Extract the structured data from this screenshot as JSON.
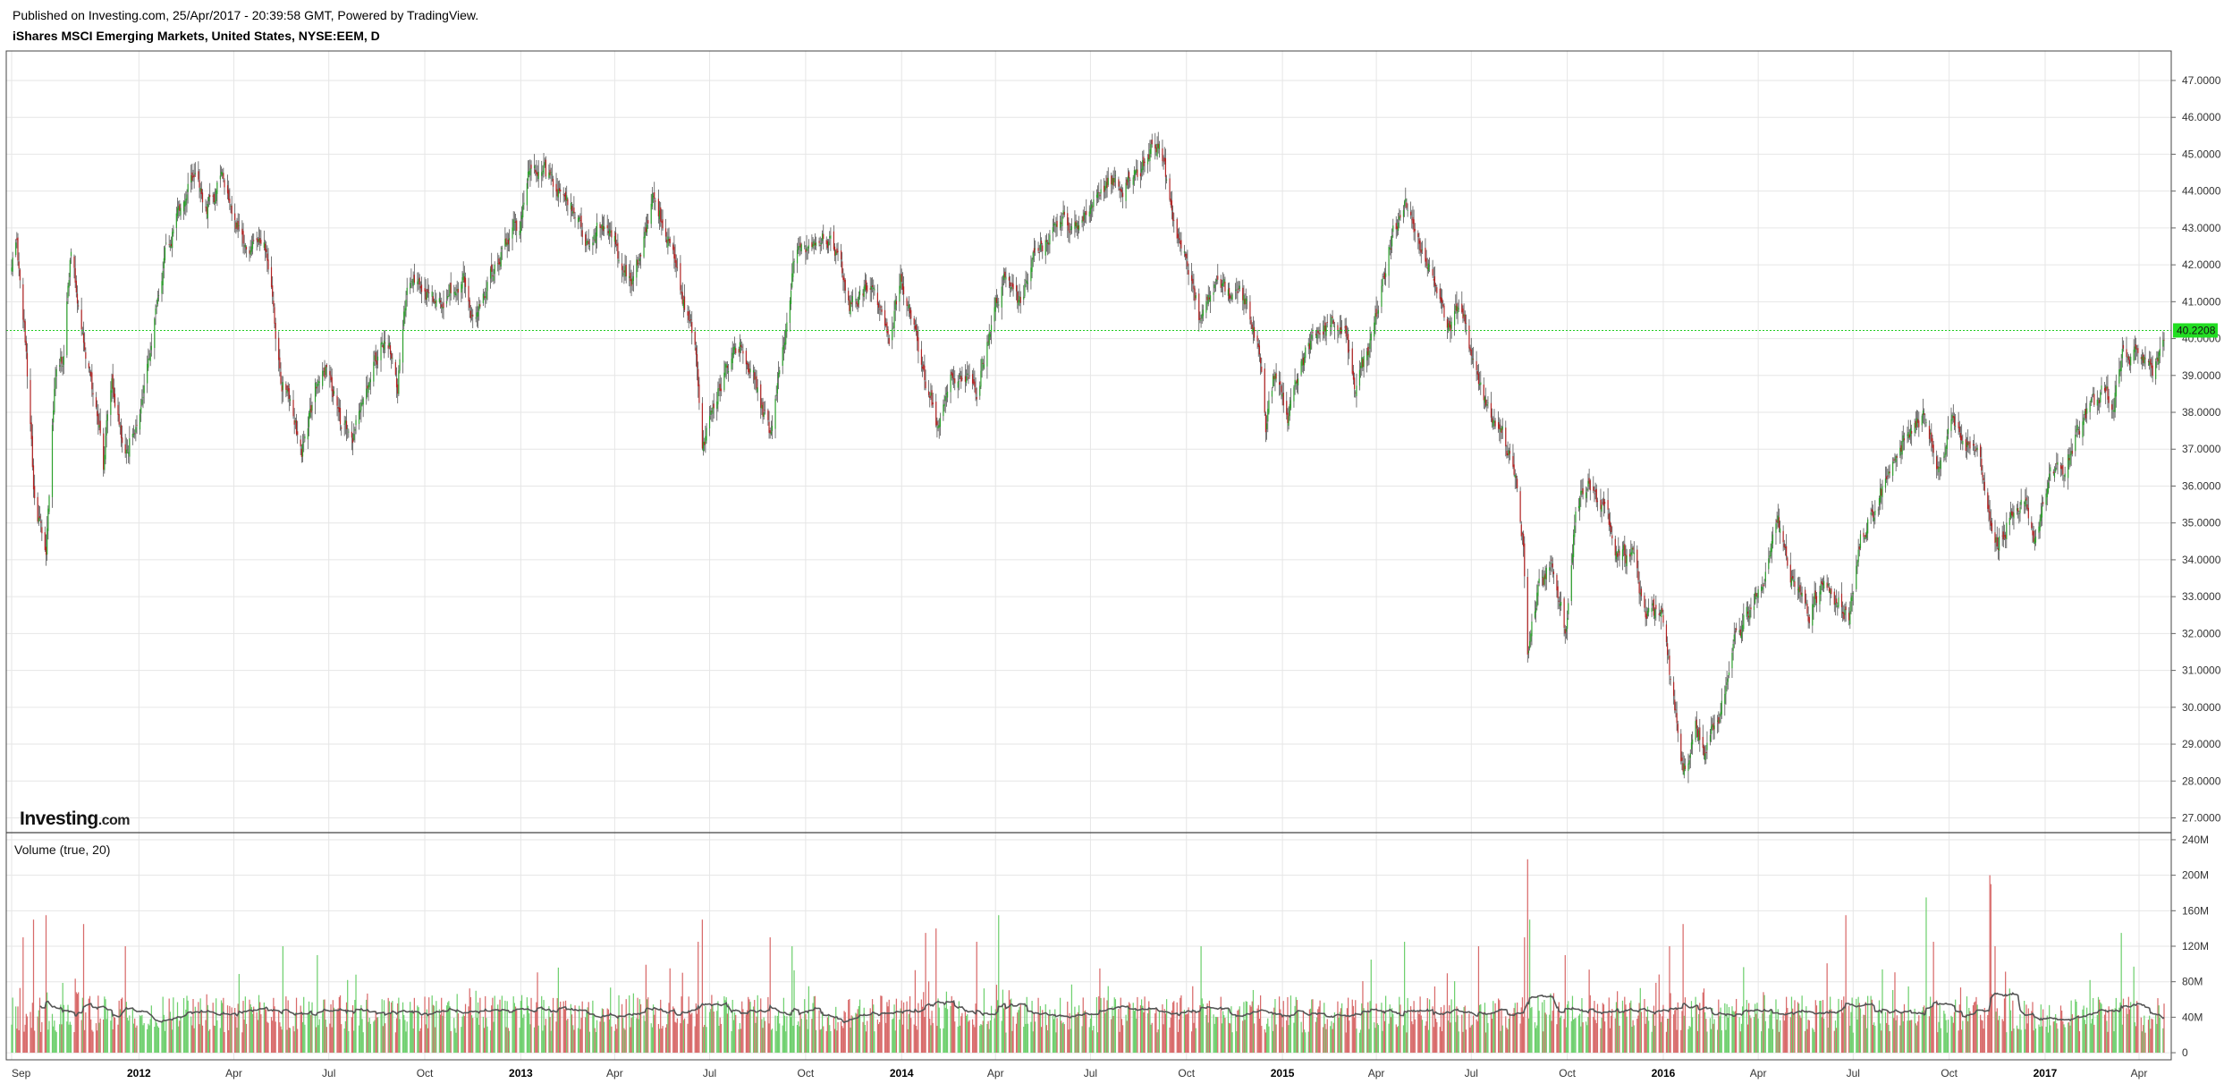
{
  "header": {
    "published": "Published on Investing.com, 25/Apr/2017 - 20:39:58 GMT, Powered by TradingView.",
    "title": "iShares MSCI Emerging Markets, United States, NYSE:EEM, D"
  },
  "logo": {
    "main": "Investing",
    "suffix": ".com"
  },
  "colors": {
    "up": "#2ca02c",
    "down": "#b22222",
    "wick": "#555555",
    "vol_up": "#6fd06f",
    "vol_down": "#d86a6a",
    "vol_ma": "#555555",
    "last_price_line": "#22cc22",
    "last_price_badge": "#22dd22",
    "grid": "#e6e6e6"
  },
  "chart_data": [
    {
      "type": "candlestick",
      "title": "iShares MSCI Emerging Markets, United States, NYSE:EEM, D",
      "ylim": [
        26.6,
        47.8
      ],
      "yticks": [
        "27.0000",
        "28.0000",
        "29.0000",
        "30.0000",
        "31.0000",
        "32.0000",
        "33.0000",
        "34.0000",
        "35.0000",
        "36.0000",
        "37.0000",
        "38.0000",
        "39.0000",
        "40.0000",
        "41.0000",
        "42.0000",
        "43.0000",
        "44.0000",
        "45.0000",
        "46.0000",
        "47.0000"
      ],
      "last_price": 40.2208,
      "last_price_label": "40.2208",
      "x_start": "2011-09-01",
      "x_end": "2017-04-25",
      "xticks": [
        {
          "date": "2011-09-01",
          "label": "Sep",
          "bold": false
        },
        {
          "date": "2012-01-01",
          "label": "2012",
          "bold": true
        },
        {
          "date": "2012-04-01",
          "label": "Apr",
          "bold": false
        },
        {
          "date": "2012-07-01",
          "label": "Jul",
          "bold": false
        },
        {
          "date": "2012-10-01",
          "label": "Oct",
          "bold": false
        },
        {
          "date": "2013-01-01",
          "label": "2013",
          "bold": true
        },
        {
          "date": "2013-04-01",
          "label": "Apr",
          "bold": false
        },
        {
          "date": "2013-07-01",
          "label": "Jul",
          "bold": false
        },
        {
          "date": "2013-10-01",
          "label": "Oct",
          "bold": false
        },
        {
          "date": "2014-01-01",
          "label": "2014",
          "bold": true
        },
        {
          "date": "2014-04-01",
          "label": "Apr",
          "bold": false
        },
        {
          "date": "2014-07-01",
          "label": "Jul",
          "bold": false
        },
        {
          "date": "2014-10-01",
          "label": "Oct",
          "bold": false
        },
        {
          "date": "2015-01-01",
          "label": "2015",
          "bold": true
        },
        {
          "date": "2015-04-01",
          "label": "Apr",
          "bold": false
        },
        {
          "date": "2015-07-01",
          "label": "Jul",
          "bold": false
        },
        {
          "date": "2015-10-01",
          "label": "Oct",
          "bold": false
        },
        {
          "date": "2016-01-01",
          "label": "2016",
          "bold": true
        },
        {
          "date": "2016-04-01",
          "label": "Apr",
          "bold": false
        },
        {
          "date": "2016-07-01",
          "label": "Jul",
          "bold": false
        },
        {
          "date": "2016-10-01",
          "label": "Oct",
          "bold": false
        },
        {
          "date": "2017-01-01",
          "label": "2017",
          "bold": true
        },
        {
          "date": "2017-04-01",
          "label": "Apr",
          "bold": false
        }
      ],
      "price_path": [
        [
          "2011-09-01",
          42.0
        ],
        [
          "2011-09-06",
          42.6
        ],
        [
          "2011-09-14",
          40.0
        ],
        [
          "2011-09-22",
          36.0
        ],
        [
          "2011-10-04",
          34.0
        ],
        [
          "2011-10-12",
          38.6
        ],
        [
          "2011-10-20",
          39.5
        ],
        [
          "2011-10-28",
          42.5
        ],
        [
          "2011-11-08",
          40.2
        ],
        [
          "2011-11-22",
          38.0
        ],
        [
          "2011-11-28",
          36.5
        ],
        [
          "2011-12-06",
          39.0
        ],
        [
          "2011-12-19",
          37.0
        ],
        [
          "2011-12-30",
          37.8
        ],
        [
          "2012-01-12",
          39.5
        ],
        [
          "2012-01-27",
          42.5
        ],
        [
          "2012-02-10",
          43.5
        ],
        [
          "2012-02-24",
          44.5
        ],
        [
          "2012-03-06",
          43.5
        ],
        [
          "2012-03-20",
          44.3
        ],
        [
          "2012-04-02",
          43.0
        ],
        [
          "2012-04-16",
          42.6
        ],
        [
          "2012-04-30",
          43.0
        ],
        [
          "2012-05-08",
          41.0
        ],
        [
          "2012-05-16",
          39.0
        ],
        [
          "2012-05-31",
          37.5
        ],
        [
          "2012-06-05",
          37.0
        ],
        [
          "2012-06-18",
          38.6
        ],
        [
          "2012-06-29",
          39.2
        ],
        [
          "2012-07-12",
          37.8
        ],
        [
          "2012-07-24",
          37.3
        ],
        [
          "2012-08-06",
          39.0
        ],
        [
          "2012-08-20",
          39.8
        ],
        [
          "2012-08-31",
          39.5
        ],
        [
          "2012-09-05",
          38.8
        ],
        [
          "2012-09-14",
          41.5
        ],
        [
          "2012-09-28",
          41.3
        ],
        [
          "2012-10-12",
          41.0
        ],
        [
          "2012-10-26",
          41.3
        ],
        [
          "2012-11-08",
          41.5
        ],
        [
          "2012-11-16",
          40.5
        ],
        [
          "2012-11-30",
          41.5
        ],
        [
          "2012-12-14",
          42.5
        ],
        [
          "2012-12-31",
          43.2
        ],
        [
          "2013-01-08",
          44.7
        ],
        [
          "2013-01-22",
          44.5
        ],
        [
          "2013-02-05",
          44.0
        ],
        [
          "2013-02-20",
          43.5
        ],
        [
          "2013-03-04",
          42.7
        ],
        [
          "2013-03-15",
          43.0
        ],
        [
          "2013-04-01",
          42.5
        ],
        [
          "2013-04-16",
          41.5
        ],
        [
          "2013-04-30",
          42.8
        ],
        [
          "2013-05-08",
          43.8
        ],
        [
          "2013-05-22",
          42.8
        ],
        [
          "2013-06-05",
          41.0
        ],
        [
          "2013-06-17",
          40.0
        ],
        [
          "2013-06-24",
          37.0
        ],
        [
          "2013-07-03",
          38.0
        ],
        [
          "2013-07-17",
          39.3
        ],
        [
          "2013-08-01",
          39.8
        ],
        [
          "2013-08-16",
          38.7
        ],
        [
          "2013-08-28",
          37.3
        ],
        [
          "2013-09-10",
          40.0
        ],
        [
          "2013-09-20",
          42.3
        ],
        [
          "2013-10-04",
          42.5
        ],
        [
          "2013-10-18",
          42.8
        ],
        [
          "2013-10-30",
          42.4
        ],
        [
          "2013-11-12",
          41.0
        ],
        [
          "2013-11-27",
          41.4
        ],
        [
          "2013-12-10",
          40.8
        ],
        [
          "2013-12-20",
          40.0
        ],
        [
          "2013-12-31",
          41.5
        ],
        [
          "2014-01-13",
          40.3
        ],
        [
          "2014-01-27",
          38.6
        ],
        [
          "2014-02-03",
          37.8
        ],
        [
          "2014-02-18",
          39.0
        ],
        [
          "2014-03-03",
          38.8
        ],
        [
          "2014-03-14",
          38.5
        ],
        [
          "2014-03-28",
          40.5
        ],
        [
          "2014-04-10",
          41.6
        ],
        [
          "2014-04-25",
          41.0
        ],
        [
          "2014-05-09",
          42.2
        ],
        [
          "2014-05-23",
          42.7
        ],
        [
          "2014-06-05",
          43.3
        ],
        [
          "2014-06-20",
          43.0
        ],
        [
          "2014-07-01",
          43.6
        ],
        [
          "2014-07-16",
          44.3
        ],
        [
          "2014-07-31",
          44.0
        ],
        [
          "2014-08-14",
          44.5
        ],
        [
          "2014-08-28",
          45.2
        ],
        [
          "2014-09-05",
          45.5
        ],
        [
          "2014-09-12",
          44.2
        ],
        [
          "2014-09-24",
          42.8
        ],
        [
          "2014-10-06",
          41.8
        ],
        [
          "2014-10-15",
          40.3
        ],
        [
          "2014-10-31",
          41.5
        ],
        [
          "2014-11-14",
          41.2
        ],
        [
          "2014-11-28",
          41.0
        ],
        [
          "2014-12-08",
          40.0
        ],
        [
          "2014-12-16",
          37.5
        ],
        [
          "2014-12-24",
          39.0
        ],
        [
          "2015-01-06",
          38.0
        ],
        [
          "2015-01-20",
          39.5
        ],
        [
          "2015-02-03",
          40.0
        ],
        [
          "2015-02-18",
          40.5
        ],
        [
          "2015-03-03",
          40.0
        ],
        [
          "2015-03-12",
          38.6
        ],
        [
          "2015-03-25",
          39.8
        ],
        [
          "2015-04-02",
          40.8
        ],
        [
          "2015-04-14",
          42.6
        ],
        [
          "2015-04-28",
          43.6
        ],
        [
          "2015-05-12",
          42.6
        ],
        [
          "2015-05-26",
          41.8
        ],
        [
          "2015-06-08",
          40.5
        ],
        [
          "2015-06-22",
          40.8
        ],
        [
          "2015-07-07",
          38.8
        ],
        [
          "2015-07-20",
          38.0
        ],
        [
          "2015-07-31",
          37.5
        ],
        [
          "2015-08-11",
          36.5
        ],
        [
          "2015-08-20",
          34.5
        ],
        [
          "2015-08-24",
          31.5
        ],
        [
          "2015-09-02",
          33.0
        ],
        [
          "2015-09-16",
          34.0
        ],
        [
          "2015-09-29",
          32.0
        ],
        [
          "2015-10-09",
          35.5
        ],
        [
          "2015-10-22",
          36.0
        ],
        [
          "2015-11-04",
          35.5
        ],
        [
          "2015-11-17",
          34.3
        ],
        [
          "2015-12-02",
          34.0
        ],
        [
          "2015-12-14",
          32.4
        ],
        [
          "2015-12-30",
          32.6
        ],
        [
          "2016-01-08",
          30.7
        ],
        [
          "2016-01-20",
          28.3
        ],
        [
          "2016-02-01",
          29.5
        ],
        [
          "2016-02-11",
          28.8
        ],
        [
          "2016-02-26",
          30.0
        ],
        [
          "2016-03-10",
          31.8
        ],
        [
          "2016-03-24",
          32.8
        ],
        [
          "2016-04-07",
          33.5
        ],
        [
          "2016-04-20",
          35.0
        ],
        [
          "2016-05-03",
          33.5
        ],
        [
          "2016-05-19",
          32.4
        ],
        [
          "2016-06-02",
          33.6
        ],
        [
          "2016-06-15",
          33.0
        ],
        [
          "2016-06-27",
          32.5
        ],
        [
          "2016-07-08",
          34.6
        ],
        [
          "2016-07-25",
          35.6
        ],
        [
          "2016-08-10",
          36.8
        ],
        [
          "2016-08-24",
          37.5
        ],
        [
          "2016-09-08",
          37.9
        ],
        [
          "2016-09-20",
          36.6
        ],
        [
          "2016-10-04",
          37.6
        ],
        [
          "2016-10-17",
          37.0
        ],
        [
          "2016-10-28",
          37.3
        ],
        [
          "2016-11-09",
          35.2
        ],
        [
          "2016-11-14",
          34.3
        ],
        [
          "2016-11-28",
          35.2
        ],
        [
          "2016-12-13",
          35.6
        ],
        [
          "2016-12-23",
          34.6
        ],
        [
          "2017-01-06",
          36.2
        ],
        [
          "2017-01-20",
          36.6
        ],
        [
          "2017-02-03",
          37.6
        ],
        [
          "2017-02-16",
          38.2
        ],
        [
          "2017-03-01",
          38.6
        ],
        [
          "2017-03-07",
          38.0
        ],
        [
          "2017-03-16",
          39.8
        ],
        [
          "2017-03-24",
          39.5
        ],
        [
          "2017-04-04",
          39.6
        ],
        [
          "2017-04-14",
          38.9
        ],
        [
          "2017-04-25",
          40.22
        ]
      ]
    },
    {
      "type": "bar",
      "title": "Volume (true, 20)",
      "ylim": [
        -8,
        248
      ],
      "unit": "M",
      "yticks": [
        "0",
        "40M",
        "80M",
        "120M",
        "160M",
        "200M",
        "240M"
      ],
      "ma_period": 20,
      "typical_volume_m": 50,
      "spikes": [
        {
          "date": "2011-09-12",
          "value_m": 130
        },
        {
          "date": "2011-09-22",
          "value_m": 150
        },
        {
          "date": "2011-10-04",
          "value_m": 155
        },
        {
          "date": "2011-11-09",
          "value_m": 145
        },
        {
          "date": "2011-12-19",
          "value_m": 120
        },
        {
          "date": "2012-05-18",
          "value_m": 120
        },
        {
          "date": "2012-06-20",
          "value_m": 110
        },
        {
          "date": "2013-06-20",
          "value_m": 125
        },
        {
          "date": "2013-06-24",
          "value_m": 150
        },
        {
          "date": "2013-08-28",
          "value_m": 130
        },
        {
          "date": "2013-09-18",
          "value_m": 120
        },
        {
          "date": "2014-01-24",
          "value_m": 135
        },
        {
          "date": "2014-02-03",
          "value_m": 140
        },
        {
          "date": "2014-03-14",
          "value_m": 125
        },
        {
          "date": "2014-04-04",
          "value_m": 155
        },
        {
          "date": "2014-10-15",
          "value_m": 120
        },
        {
          "date": "2015-04-28",
          "value_m": 125
        },
        {
          "date": "2015-07-08",
          "value_m": 120
        },
        {
          "date": "2015-08-21",
          "value_m": 130
        },
        {
          "date": "2015-08-24",
          "value_m": 218
        },
        {
          "date": "2015-08-26",
          "value_m": 150
        },
        {
          "date": "2015-09-29",
          "value_m": 110
        },
        {
          "date": "2016-01-07",
          "value_m": 120
        },
        {
          "date": "2016-01-20",
          "value_m": 145
        },
        {
          "date": "2016-06-24",
          "value_m": 155
        },
        {
          "date": "2016-09-09",
          "value_m": 175
        },
        {
          "date": "2016-09-16",
          "value_m": 125
        },
        {
          "date": "2016-11-09",
          "value_m": 200
        },
        {
          "date": "2016-11-10",
          "value_m": 190
        },
        {
          "date": "2016-11-14",
          "value_m": 120
        },
        {
          "date": "2017-03-15",
          "value_m": 135
        },
        {
          "date": "2017-03-27",
          "value_m": 97
        }
      ]
    }
  ]
}
